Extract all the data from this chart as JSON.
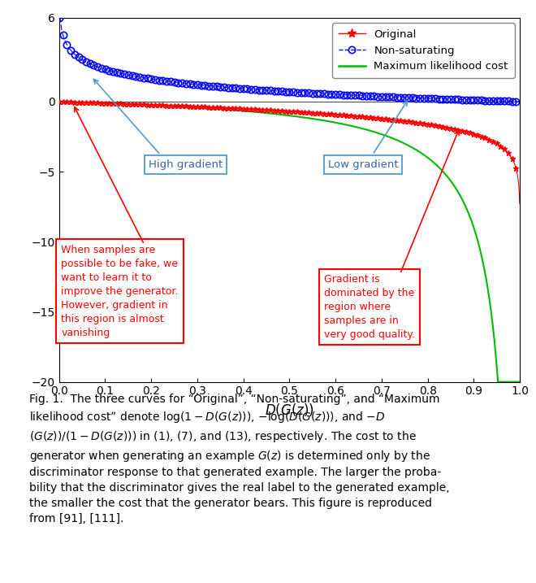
{
  "xlim": [
    0,
    1
  ],
  "ylim": [
    -20,
    6
  ],
  "xlabel": "$D(G(z))$",
  "xticks": [
    0,
    0.1,
    0.2,
    0.3,
    0.4,
    0.5,
    0.6,
    0.7,
    0.8,
    0.9,
    1.0
  ],
  "yticks": [
    -20,
    -15,
    -10,
    -5,
    0,
    6
  ],
  "legend_labels": [
    "Original",
    "Non-saturating",
    "Maximum likelihood cost"
  ],
  "original_color": "#FF0000",
  "nonsaturating_color": "#0000FF",
  "mlcost_color": "#00BB00",
  "annotation_box1_text": "When samples are\npossible to be fake, we\nwant to learn it to\nimprove the generator.\nHowever, gradient in\nthis region is almost\nvanishing",
  "annotation_box2_text": "Gradient is\ndominated by the\nregion where\nsamples are in\nvery good quality.",
  "high_gradient_text": "High gradient",
  "low_gradient_text": "Low gradient",
  "lq1": "“",
  "rq1": "”",
  "caption_line1": "Fig. 1.  The three curves for “Original”, “Non-saturating”, and “Maximum",
  "caption_line2": "likelihood cost” denote $\\log(1-D(G(z)))$, $-\\log(D(G(z)))$, and $-D$",
  "caption_line3": "$(G(z))/(1-D(G(z)))$ in (1), (7), and (13), respectively. The cost to the",
  "caption_line4": "generator when generating an example $G(z)$ is determined only by the",
  "caption_line5": "discriminator response to that generated example. The larger the proba-",
  "caption_line6": "bility that the discriminator gives the real label to the generated example,",
  "caption_line7": "the smaller the cost that the generator bears. This figure is reproduced",
  "caption_line8": "from [91], [111]."
}
